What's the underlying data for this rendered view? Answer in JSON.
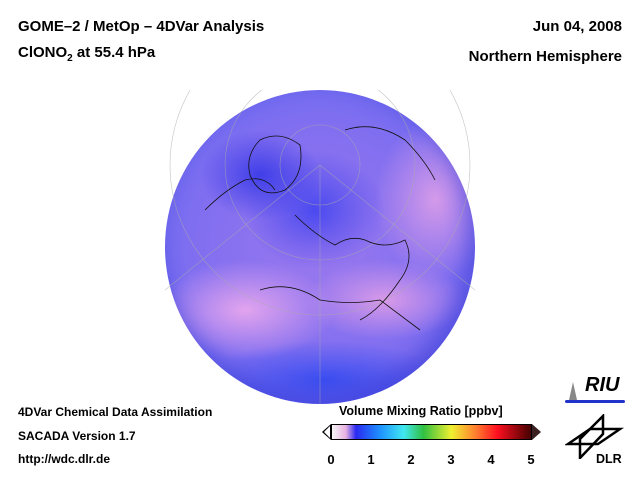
{
  "header": {
    "title": "GOME–2 / MetOp – 4DVar Analysis",
    "species": "ClONO",
    "species_sub": "2",
    "level": " at 55.4 hPa",
    "date": "Jun 04, 2008",
    "region": "Northern Hemisphere"
  },
  "footer": {
    "line1": "4DVar Chemical Data Assimilation",
    "line2": "SACADA Version 1.7",
    "url": "http://wdc.dlr.de"
  },
  "colorbar": {
    "label": "Volume Mixing Ratio [ppbv]",
    "ticks": [
      "0",
      "1",
      "2",
      "3",
      "4",
      "5"
    ],
    "min": 0,
    "max": 5
  },
  "logos": {
    "riu": "RIU",
    "dlr": "DLR"
  }
}
